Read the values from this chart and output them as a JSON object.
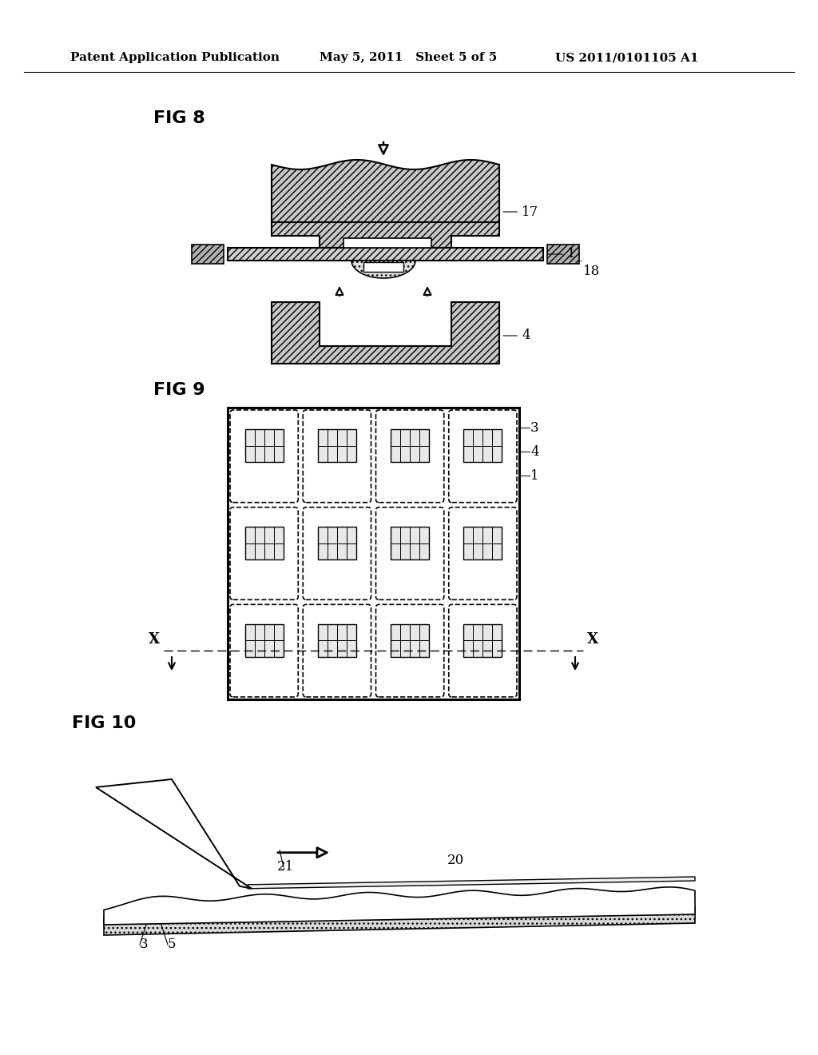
{
  "title_left": "Patent Application Publication",
  "title_mid": "May 5, 2011   Sheet 5 of 5",
  "title_right": "US 2011/0101105 A1",
  "bg_color": "#ffffff",
  "fig8_label": "FIG 8",
  "fig9_label": "FIG 9",
  "fig10_label": "FIG 10",
  "label_fontsize": 12,
  "fig_label_fontsize": 16
}
